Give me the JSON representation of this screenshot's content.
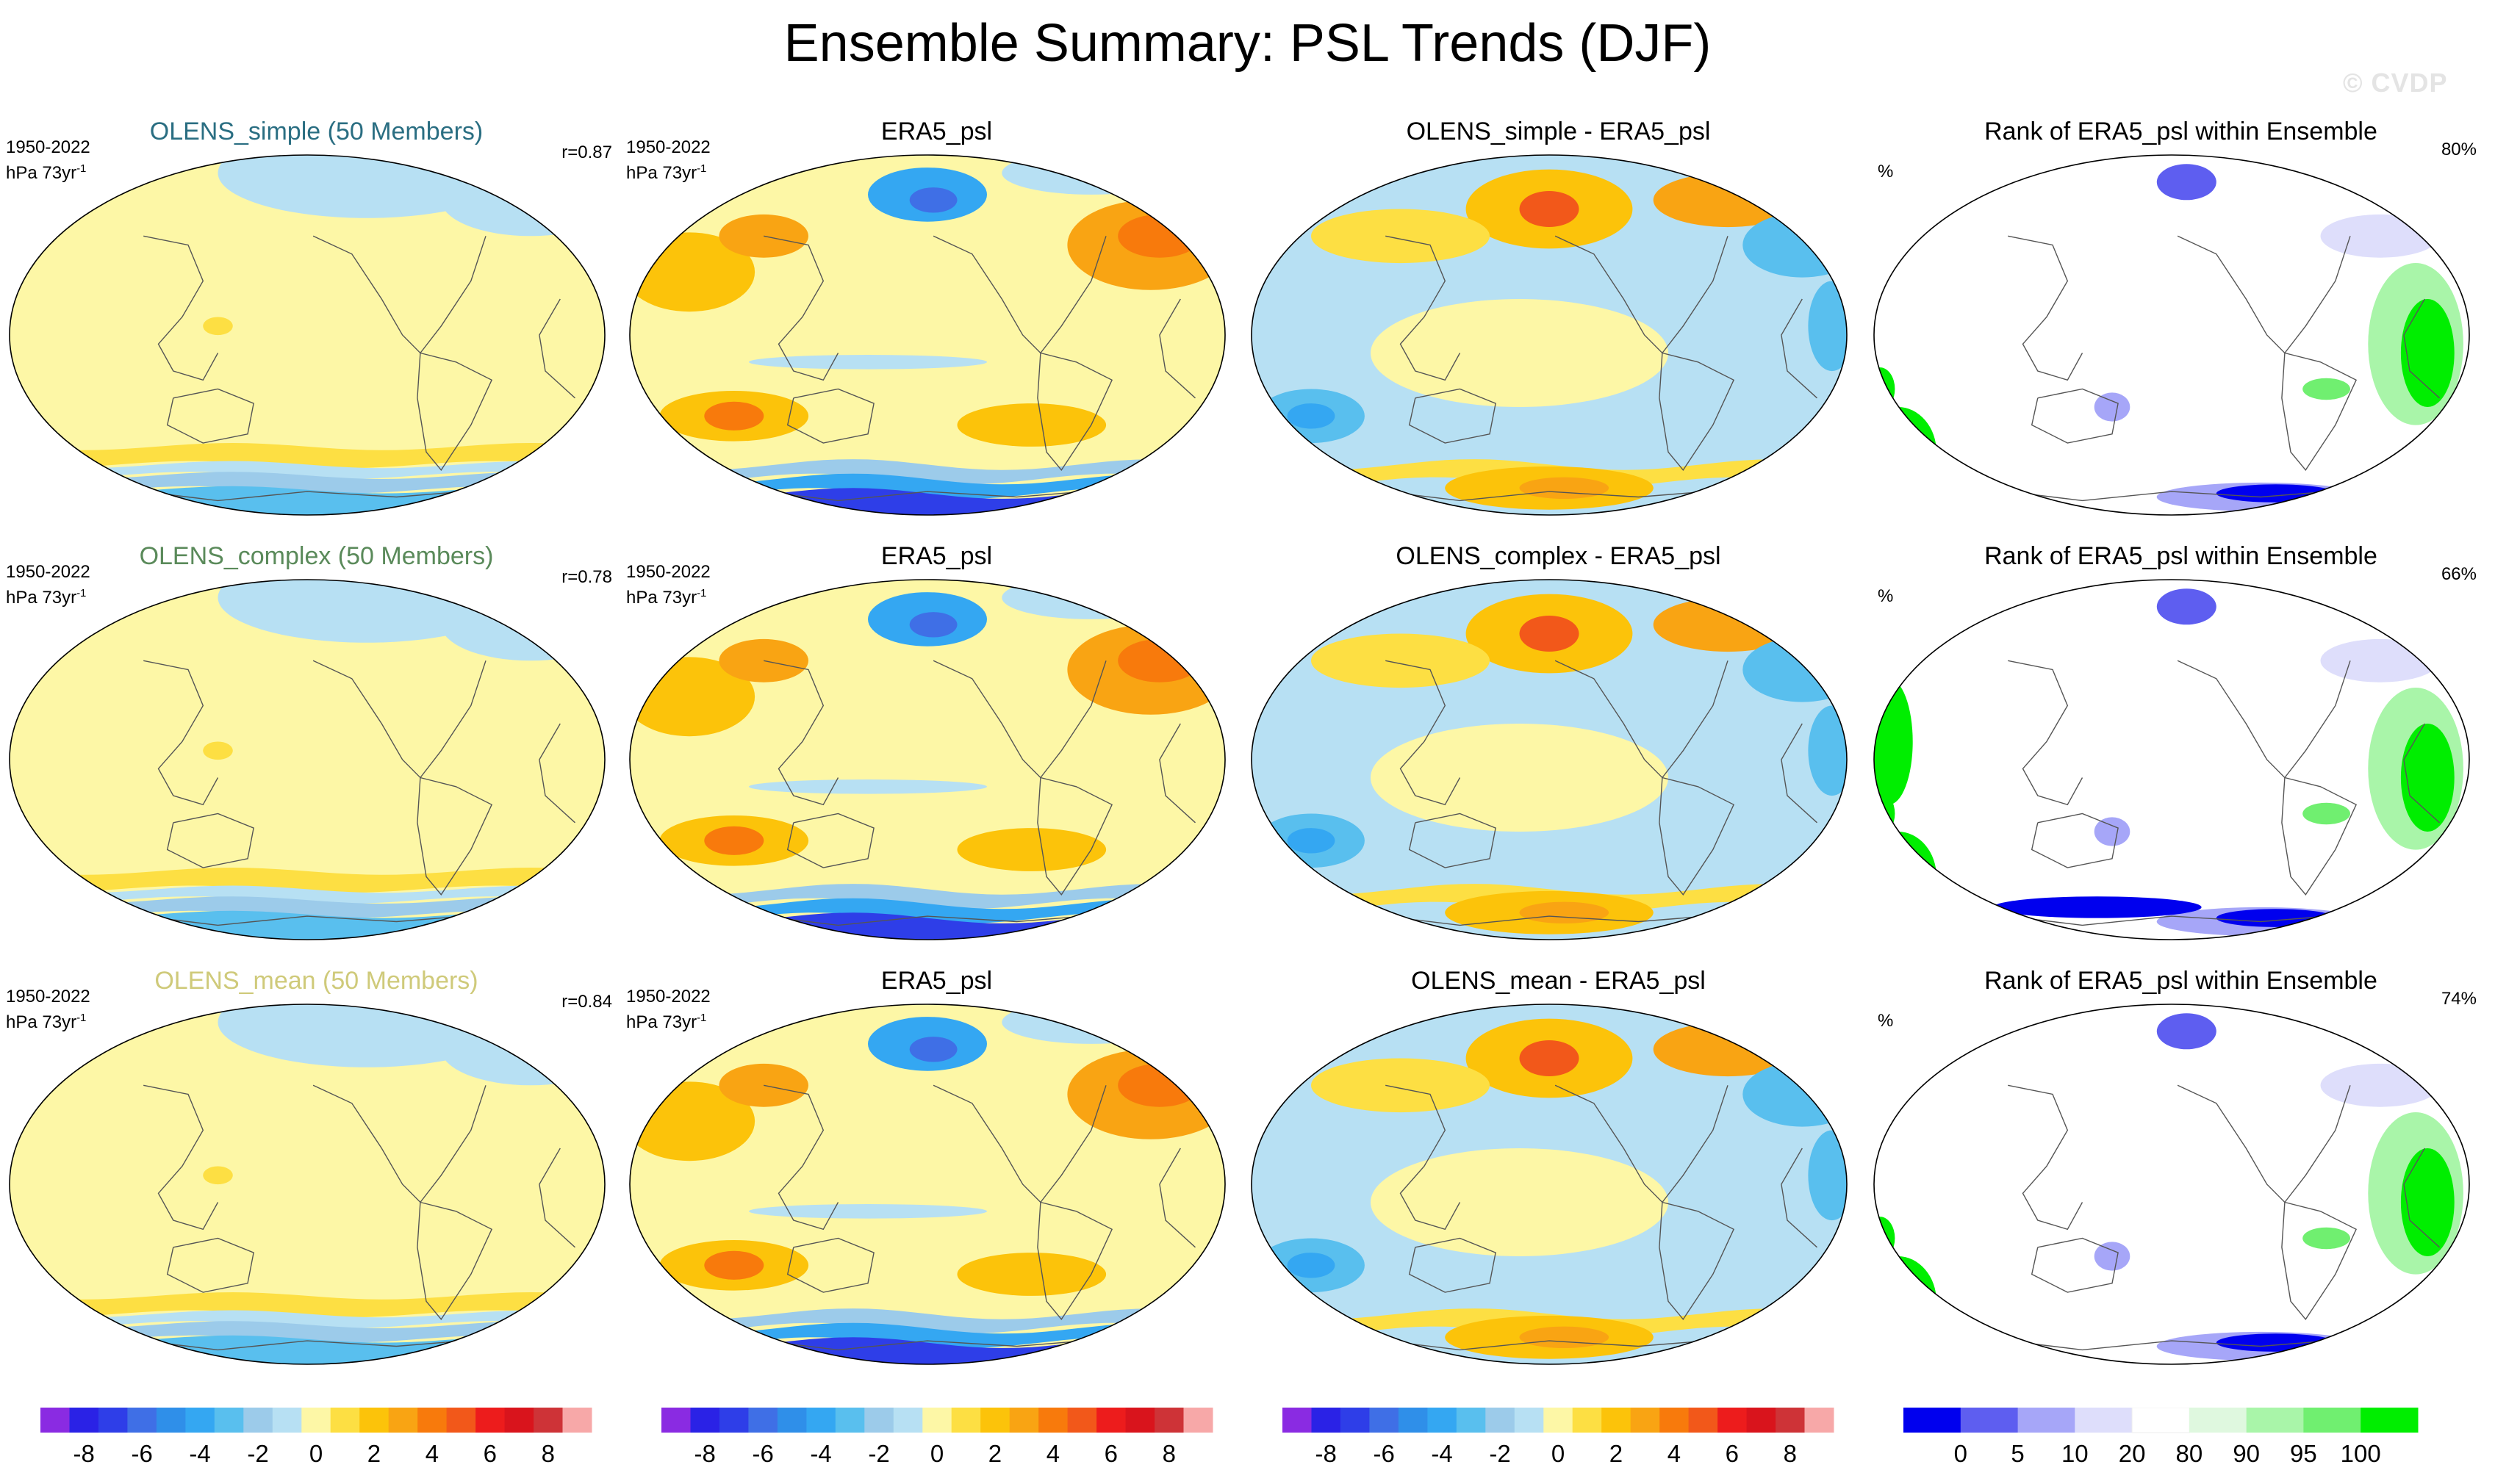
{
  "title": "Ensemble Summary: PSL Trends (DJF)",
  "watermark": "© CVDP",
  "period": "1950-2022",
  "units_main": "hPa 73yr",
  "units_sup": "-1",
  "rank_units": "%",
  "colors": {
    "diverging": [
      "#8a2be2",
      "#2a22e6",
      "#2e3ee8",
      "#3f6fe6",
      "#2f8fe9",
      "#34a7f2",
      "#59bfee",
      "#9ccbea",
      "#b7e0f3",
      "#fdf7a6",
      "#fddf43",
      "#fcc30a",
      "#f9a413",
      "#f87a0c",
      "#f2581a",
      "#ed1c1c",
      "#d9141c",
      "#ce3337",
      "#f7a8a8"
    ],
    "rank": [
      "#0000ee",
      "#5e5ef0",
      "#a6a6f8",
      "#dedefb",
      "#ffffff",
      "#dff8df",
      "#a9f5a9",
      "#70ef70",
      "#00ee00"
    ]
  },
  "chart_data": [
    {
      "type": "heatmap",
      "row": 0,
      "col": 0,
      "title": "OLENS_simple (50 Members)",
      "title_color": "#2a6e82",
      "field": "ensemble_mean",
      "correlation": "r=0.87"
    },
    {
      "type": "heatmap",
      "row": 0,
      "col": 1,
      "title": "ERA5_psl",
      "title_color": "#000000",
      "field": "observations"
    },
    {
      "type": "heatmap",
      "row": 0,
      "col": 2,
      "title": "OLENS_simple - ERA5_psl",
      "title_color": "#000000",
      "field": "difference"
    },
    {
      "type": "heatmap",
      "row": 0,
      "col": 3,
      "title": "Rank of ERA5_psl within Ensemble",
      "title_color": "#000000",
      "field": "rank",
      "rank_summary": "80%"
    },
    {
      "type": "heatmap",
      "row": 1,
      "col": 0,
      "title": "OLENS_complex (50 Members)",
      "title_color": "#5a8a5a",
      "field": "ensemble_mean",
      "correlation": "r=0.78"
    },
    {
      "type": "heatmap",
      "row": 1,
      "col": 1,
      "title": "ERA5_psl",
      "title_color": "#000000",
      "field": "observations"
    },
    {
      "type": "heatmap",
      "row": 1,
      "col": 2,
      "title": "OLENS_complex - ERA5_psl",
      "title_color": "#000000",
      "field": "difference"
    },
    {
      "type": "heatmap",
      "row": 1,
      "col": 3,
      "title": "Rank of ERA5_psl within Ensemble",
      "title_color": "#000000",
      "field": "rank",
      "rank_summary": "66%"
    },
    {
      "type": "heatmap",
      "row": 2,
      "col": 0,
      "title": "OLENS_mean (50 Members)",
      "title_color": "#cfca7a",
      "field": "ensemble_mean",
      "correlation": "r=0.84"
    },
    {
      "type": "heatmap",
      "row": 2,
      "col": 1,
      "title": "ERA5_psl",
      "title_color": "#000000",
      "field": "observations"
    },
    {
      "type": "heatmap",
      "row": 2,
      "col": 2,
      "title": "OLENS_mean - ERA5_psl",
      "title_color": "#000000",
      "field": "difference"
    },
    {
      "type": "heatmap",
      "row": 2,
      "col": 3,
      "title": "Rank of ERA5_psl within Ensemble",
      "title_color": "#000000",
      "field": "rank",
      "rank_summary": "74%"
    }
  ],
  "colorbars": [
    {
      "kind": "diverging",
      "labels": [
        "-8",
        "-6",
        "-4",
        "-2",
        "0",
        "2",
        "4",
        "6",
        "8"
      ]
    },
    {
      "kind": "diverging",
      "labels": [
        "-8",
        "-6",
        "-4",
        "-2",
        "0",
        "2",
        "4",
        "6",
        "8"
      ]
    },
    {
      "kind": "diverging",
      "labels": [
        "-8",
        "-6",
        "-4",
        "-2",
        "0",
        "2",
        "4",
        "6",
        "8"
      ]
    },
    {
      "kind": "rank",
      "labels": [
        "0",
        "5",
        "10",
        "20",
        "80",
        "90",
        "95",
        "100"
      ]
    }
  ]
}
